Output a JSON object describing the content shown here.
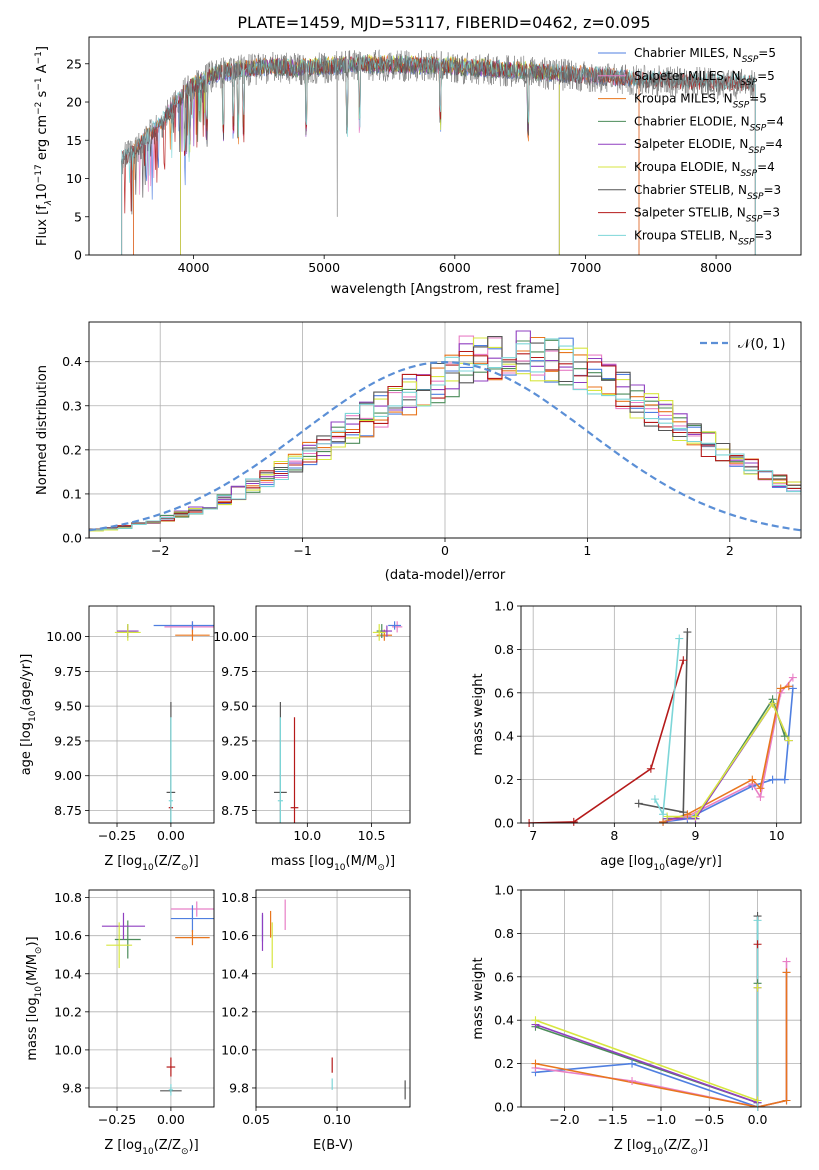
{
  "figure_title": "PLATE=1459, MJD=53117, FIBERID=0462, z=0.095",
  "colors": {
    "chabrier_miles": "#4f7fe0",
    "salpeter_miles": "#e87fc6",
    "kroupa_miles": "#e8761e",
    "chabrier_elodie": "#4c8c5a",
    "salpeter_elodie": "#8f3fc0",
    "kroupa_elodie": "#d7e640",
    "chabrier_stelib": "#555555",
    "salpeter_stelib": "#b51a1a",
    "kroupa_stelib": "#7dd6d8",
    "normal_curve": "#5b8fd6",
    "grid": "#b0b0b0"
  },
  "chart_data": [
    {
      "id": "spectrum",
      "type": "line",
      "title": "PLATE=1459, MJD=53117, FIBERID=0462, z=0.095",
      "xlabel": "wavelength [Angstrom, rest frame]",
      "ylabel_parts": [
        "Flux [f",
        "λ",
        "10",
        "−17",
        " erg cm",
        "−2",
        " s",
        "−1",
        " A",
        "−1",
        "]"
      ],
      "xlim": [
        3200,
        8650
      ],
      "ylim": [
        0,
        28.5
      ],
      "xticks": [
        4000,
        5000,
        6000,
        7000,
        8000
      ],
      "yticks": [
        0,
        5,
        10,
        15,
        20,
        25
      ],
      "grid": false,
      "legend_position": "upper-right",
      "legend": [
        {
          "name": "Chabrier MILES, N",
          "sub": "SSP",
          "suffix": "=5",
          "color": "#4f7fe0"
        },
        {
          "name": "Salpeter MILES, N",
          "sub": "SSP",
          "suffix": "=5",
          "color": "#e87fc6"
        },
        {
          "name": "Kroupa MILES, N",
          "sub": "SSP",
          "suffix": "=5",
          "color": "#e8761e"
        },
        {
          "name": "Chabrier ELODIE, N",
          "sub": "SSP",
          "suffix": "=4",
          "color": "#4c8c5a"
        },
        {
          "name": "Salpeter ELODIE, N",
          "sub": "SSP",
          "suffix": "=4",
          "color": "#8f3fc0"
        },
        {
          "name": "Kroupa ELODIE, N",
          "sub": "SSP",
          "suffix": "=4",
          "color": "#d7e640"
        },
        {
          "name": "Chabrier STELIB, N",
          "sub": "SSP",
          "suffix": "=3",
          "color": "#555555"
        },
        {
          "name": "Salpeter STELIB, N",
          "sub": "SSP",
          "suffix": "=3",
          "color": "#b51a1a"
        },
        {
          "name": "Kroupa STELIB, N",
          "sub": "SSP",
          "suffix": "=3",
          "color": "#7dd6d8"
        }
      ],
      "continuum": {
        "x": [
          3450,
          3550,
          3650,
          3750,
          3850,
          3950,
          4050,
          4150,
          4250,
          4400,
          4600,
          4800,
          5000,
          5300,
          5600,
          5900,
          6200,
          6500,
          6800,
          7100,
          7400,
          7700,
          8000,
          8300
        ],
        "y": [
          12.5,
          13.5,
          15.5,
          17,
          19.5,
          21.5,
          22.5,
          23.5,
          23.8,
          24.2,
          24.5,
          24.3,
          24.5,
          24.8,
          24.7,
          24.6,
          24.3,
          24.0,
          23.6,
          23.3,
          22.9,
          22.6,
          22.4,
          22.3
        ]
      },
      "series_ranges": [
        {
          "name": "Chabrier MILES",
          "x": [
            3540,
            7410
          ]
        },
        {
          "name": "Salpeter MILES",
          "x": [
            3540,
            7410
          ]
        },
        {
          "name": "Kroupa MILES",
          "x": [
            3540,
            7410
          ]
        },
        {
          "name": "Chabrier ELODIE",
          "x": [
            3900,
            6800
          ]
        },
        {
          "name": "Salpeter ELODIE",
          "x": [
            3900,
            6800
          ]
        },
        {
          "name": "Kroupa ELODIE",
          "x": [
            3900,
            6800
          ]
        },
        {
          "name": "Chabrier STELIB",
          "x": [
            3450,
            8300
          ]
        },
        {
          "name": "Salpeter STELIB",
          "x": [
            3450,
            8300
          ]
        },
        {
          "name": "Kroupa STELIB",
          "x": [
            3450,
            8300
          ]
        }
      ],
      "observed_range": [
        3450,
        8300
      ]
    },
    {
      "id": "residuals",
      "type": "histogram",
      "xlabel": "(data-model)/error",
      "ylabel": "Normed distribution",
      "xlim": [
        -2.5,
        2.5
      ],
      "ylim": [
        0,
        0.49
      ],
      "xticks": [
        -2,
        -1,
        0,
        1,
        2
      ],
      "yticks": [
        0.0,
        0.1,
        0.2,
        0.3,
        0.4
      ],
      "grid": true,
      "legend_position": "upper-right",
      "legend": [
        {
          "name": "𝒩(0, 1)",
          "color": "#5b8fd6",
          "style": "dashed"
        }
      ],
      "bins": {
        "start": -2.5,
        "width": 0.1,
        "count": 50
      },
      "base_density": [
        0.018,
        0.021,
        0.025,
        0.031,
        0.037,
        0.045,
        0.054,
        0.064,
        0.075,
        0.088,
        0.102,
        0.117,
        0.134,
        0.151,
        0.17,
        0.189,
        0.209,
        0.229,
        0.249,
        0.27,
        0.29,
        0.31,
        0.328,
        0.345,
        0.36,
        0.373,
        0.384,
        0.392,
        0.397,
        0.399,
        0.398,
        0.394,
        0.387,
        0.377,
        0.364,
        0.349,
        0.332,
        0.313,
        0.294,
        0.274,
        0.254,
        0.233,
        0.213,
        0.193,
        0.174,
        0.156,
        0.139,
        0.123,
        0.108,
        0.094
      ]
    },
    {
      "id": "age_vs_Z",
      "type": "scatter",
      "xlabel_parts": [
        "Z [log",
        "10",
        "(Z/Z",
        "⊙",
        ")]"
      ],
      "ylabel_parts": [
        "age  [log",
        "10",
        "(age/yr)]"
      ],
      "xlim": [
        -0.38,
        0.2
      ],
      "ylim": [
        8.66,
        10.22
      ],
      "xticks": [
        -0.25,
        0.0
      ],
      "yticks": [
        8.75,
        9.0,
        9.25,
        9.5,
        9.75,
        10.0
      ],
      "grid": true,
      "points": [
        {
          "x": 0.1,
          "y": 10.07,
          "xerr": 0.13,
          "yerr": 0.04,
          "color": "#e87fc6"
        },
        {
          "x": 0.1,
          "y": 10.08,
          "xerr": 0.18,
          "yerr": 0.03,
          "color": "#4f7fe0"
        },
        {
          "x": 0.1,
          "y": 10.01,
          "xerr": 0.08,
          "yerr": 0.04,
          "color": "#e8761e"
        },
        {
          "x": -0.2,
          "y": 10.04,
          "xerr": 0.04,
          "yerr": 0.05,
          "color": "#4c8c5a"
        },
        {
          "x": -0.2,
          "y": 10.04,
          "xerr": 0.05,
          "yerr": 0.04,
          "color": "#8f3fc0"
        },
        {
          "x": -0.2,
          "y": 10.03,
          "xerr": 0.06,
          "yerr": 0.06,
          "color": "#d7e640"
        },
        {
          "x": 0.0,
          "y": 8.88,
          "xerr": 0.02,
          "yerr": 0.65,
          "color": "#555555"
        },
        {
          "x": 0.0,
          "y": 8.77,
          "xerr": 0.01,
          "yerr": 0.02,
          "color": "#b51a1a"
        },
        {
          "x": 0.0,
          "y": 8.82,
          "xerr": 0.01,
          "yerr": 0.6,
          "color": "#7dd6d8"
        }
      ]
    },
    {
      "id": "age_vs_mass",
      "type": "scatter",
      "xlabel_parts": [
        "mass [log",
        "10",
        "(M/M",
        "⊙",
        ")]"
      ],
      "ylabel_parts": [],
      "xlim": [
        9.6,
        10.8
      ],
      "ylim": [
        8.66,
        10.22
      ],
      "xticks": [
        10.0,
        10.5
      ],
      "yticks": [
        8.75,
        9.0,
        9.25,
        9.5,
        9.75,
        10.0
      ],
      "grid": true,
      "points": [
        {
          "x": 10.7,
          "y": 10.07,
          "xerr": 0.04,
          "yerr": 0.04,
          "color": "#e87fc6"
        },
        {
          "x": 10.68,
          "y": 10.08,
          "xerr": 0.05,
          "yerr": 0.03,
          "color": "#4f7fe0"
        },
        {
          "x": 10.6,
          "y": 10.01,
          "xerr": 0.06,
          "yerr": 0.04,
          "color": "#e8761e"
        },
        {
          "x": 10.58,
          "y": 10.04,
          "xerr": 0.04,
          "yerr": 0.05,
          "color": "#4c8c5a"
        },
        {
          "x": 10.62,
          "y": 10.04,
          "xerr": 0.04,
          "yerr": 0.04,
          "color": "#8f3fc0"
        },
        {
          "x": 10.56,
          "y": 10.03,
          "xerr": 0.05,
          "yerr": 0.06,
          "color": "#d7e640"
        },
        {
          "x": 9.79,
          "y": 8.88,
          "xerr": 0.05,
          "yerr": 0.65,
          "color": "#555555"
        },
        {
          "x": 9.9,
          "y": 8.77,
          "xerr": 0.03,
          "yerr": 0.65,
          "color": "#b51a1a"
        },
        {
          "x": 9.79,
          "y": 8.82,
          "xerr": 0.02,
          "yerr": 0.6,
          "color": "#7dd6d8"
        }
      ]
    },
    {
      "id": "weight_vs_age",
      "type": "line",
      "xlabel_parts": [
        "age  [log",
        "10",
        "(age/yr)]"
      ],
      "ylabel": "mass weight",
      "xlim": [
        6.85,
        10.3
      ],
      "ylim": [
        0,
        1.0
      ],
      "xticks": [
        7,
        8,
        9,
        10
      ],
      "yticks": [
        0.0,
        0.2,
        0.4,
        0.6,
        0.8,
        1.0
      ],
      "grid": true,
      "series": [
        {
          "name": "Chabrier MILES",
          "color": "#4f7fe0",
          "x": [
            8.6,
            8.9,
            9.7,
            9.95,
            10.1,
            10.2
          ],
          "y": [
            0.005,
            0.02,
            0.17,
            0.2,
            0.2,
            0.62
          ]
        },
        {
          "name": "Salpeter MILES",
          "color": "#e87fc6",
          "x": [
            8.6,
            8.9,
            9.7,
            9.8,
            10.05,
            10.2
          ],
          "y": [
            0.005,
            0.03,
            0.18,
            0.12,
            0.6,
            0.67
          ]
        },
        {
          "name": "Kroupa MILES",
          "color": "#e8761e",
          "x": [
            8.6,
            8.9,
            9.7,
            9.8,
            10.05,
            10.15
          ],
          "y": [
            0.005,
            0.04,
            0.2,
            0.16,
            0.62,
            0.63
          ]
        },
        {
          "name": "Chabrier ELODIE",
          "color": "#4c8c5a",
          "x": [
            8.65,
            9.0,
            9.95,
            10.1
          ],
          "y": [
            0.02,
            0.02,
            0.57,
            0.4
          ]
        },
        {
          "name": "Salpeter ELODIE",
          "color": "#8f3fc0",
          "x": [
            8.65,
            9.0,
            9.95,
            10.15
          ],
          "y": [
            0.02,
            0.02,
            0.55,
            0.38
          ]
        },
        {
          "name": "Kroupa ELODIE",
          "color": "#d7e640",
          "x": [
            8.65,
            9.0,
            9.95,
            10.15
          ],
          "y": [
            0.03,
            0.03,
            0.55,
            0.38
          ]
        },
        {
          "name": "Chabrier STELIB",
          "color": "#555555",
          "x": [
            8.3,
            8.85,
            8.9
          ],
          "y": [
            0.09,
            0.05,
            0.88
          ]
        },
        {
          "name": "Salpeter STELIB",
          "color": "#b51a1a",
          "x": [
            6.95,
            7.5,
            8.45,
            8.85
          ],
          "y": [
            0.0,
            0.005,
            0.25,
            0.75
          ]
        },
        {
          "name": "Kroupa STELIB",
          "color": "#7dd6d8",
          "x": [
            8.5,
            8.6,
            8.8
          ],
          "y": [
            0.11,
            0.04,
            0.85
          ]
        }
      ]
    },
    {
      "id": "mass_vs_Z",
      "type": "scatter",
      "xlabel_parts": [
        "Z [log",
        "10",
        "(Z/Z",
        "⊙",
        ")]"
      ],
      "ylabel_parts": [
        "mass [log",
        "10",
        "(M/M",
        "⊙",
        ")]"
      ],
      "xlim": [
        -0.38,
        0.2
      ],
      "ylim": [
        9.7,
        10.84
      ],
      "xticks": [
        -0.25,
        0.0
      ],
      "yticks": [
        9.8,
        10.0,
        10.2,
        10.4,
        10.6,
        10.8
      ],
      "grid": true,
      "points": [
        {
          "x": 0.12,
          "y": 10.74,
          "xerr": 0.12,
          "yerr": 0.04,
          "color": "#e87fc6"
        },
        {
          "x": 0.1,
          "y": 10.69,
          "xerr": 0.1,
          "yerr": 0.07,
          "color": "#4f7fe0"
        },
        {
          "x": 0.1,
          "y": 10.59,
          "xerr": 0.08,
          "yerr": 0.04,
          "color": "#e8761e"
        },
        {
          "x": -0.2,
          "y": 10.58,
          "xerr": 0.06,
          "yerr": 0.1,
          "color": "#4c8c5a"
        },
        {
          "x": -0.22,
          "y": 10.65,
          "xerr": 0.1,
          "yerr": 0.07,
          "color": "#8f3fc0"
        },
        {
          "x": -0.24,
          "y": 10.55,
          "xerr": 0.06,
          "yerr": 0.12,
          "color": "#d7e640"
        },
        {
          "x": 0.0,
          "y": 9.785,
          "xerr": 0.05,
          "yerr": 0.01,
          "color": "#555555"
        },
        {
          "x": 0.0,
          "y": 9.91,
          "xerr": 0.02,
          "yerr": 0.05,
          "color": "#b51a1a"
        },
        {
          "x": 0.0,
          "y": 9.79,
          "xerr": 0.01,
          "yerr": 0.03,
          "color": "#7dd6d8"
        }
      ]
    },
    {
      "id": "mass_vs_EBV",
      "type": "scatter",
      "xlabel": "E(B-V)",
      "ylabel_parts": [],
      "xlim": [
        0.05,
        0.145
      ],
      "ylim": [
        9.7,
        10.84
      ],
      "xticks": [
        0.05,
        0.1
      ],
      "yticks": [
        9.8,
        10.0,
        10.2,
        10.4,
        10.6,
        10.8
      ],
      "grid": true,
      "points": [
        {
          "x": 0.068,
          "y": 10.71,
          "xerr": 0.0,
          "yerr": 0.08,
          "color": "#e87fc6"
        },
        {
          "x": 0.054,
          "y": 10.64,
          "xerr": 0.0,
          "yerr": 0.07,
          "color": "#4f7fe0"
        },
        {
          "x": 0.059,
          "y": 10.66,
          "xerr": 0.0,
          "yerr": 0.07,
          "color": "#e8761e"
        },
        {
          "x": 0.054,
          "y": 10.62,
          "xerr": 0.0,
          "yerr": 0.1,
          "color": "#8f3fc0"
        },
        {
          "x": 0.06,
          "y": 10.55,
          "xerr": 0.0,
          "yerr": 0.12,
          "color": "#d7e640"
        },
        {
          "x": 0.142,
          "y": 9.79,
          "xerr": 0.0,
          "yerr": 0.05,
          "color": "#555555"
        },
        {
          "x": 0.097,
          "y": 9.92,
          "xerr": 0.0,
          "yerr": 0.04,
          "color": "#b51a1a"
        },
        {
          "x": 0.097,
          "y": 9.82,
          "xerr": 0.0,
          "yerr": 0.03,
          "color": "#7dd6d8"
        }
      ]
    },
    {
      "id": "weight_vs_Z",
      "type": "line",
      "xlabel_parts": [
        "Z [log",
        "10",
        "(Z/Z",
        "⊙",
        ")]"
      ],
      "ylabel": "mass weight",
      "xlim": [
        -2.45,
        0.45
      ],
      "ylim": [
        0,
        1.0
      ],
      "xticks": [
        -2.0,
        -1.5,
        -1.0,
        -0.5,
        0.0
      ],
      "yticks": [
        0.0,
        0.2,
        0.4,
        0.6,
        0.8,
        1.0
      ],
      "grid": true,
      "series": [
        {
          "name": "Chabrier MILES",
          "color": "#4f7fe0",
          "x": [
            -2.3,
            -1.3,
            0.0,
            0.3,
            0.3
          ],
          "y": [
            0.16,
            0.2,
            0.0,
            0.03,
            0.62
          ]
        },
        {
          "name": "Salpeter MILES",
          "color": "#e87fc6",
          "x": [
            -2.3,
            -1.3,
            0.0,
            0.3,
            0.3
          ],
          "y": [
            0.18,
            0.12,
            0.0,
            0.03,
            0.67
          ]
        },
        {
          "name": "Kroupa MILES",
          "color": "#e8761e",
          "x": [
            -2.3,
            0.0,
            0.3,
            0.3
          ],
          "y": [
            0.2,
            0.0,
            0.03,
            0.62
          ]
        },
        {
          "name": "Chabrier ELODIE",
          "color": "#4c8c5a",
          "x": [
            -2.3,
            0.0,
            0.0
          ],
          "y": [
            0.37,
            0.02,
            0.57
          ]
        },
        {
          "name": "Salpeter ELODIE",
          "color": "#8f3fc0",
          "x": [
            -2.3,
            0.0,
            0.0
          ],
          "y": [
            0.38,
            0.02,
            0.55
          ]
        },
        {
          "name": "Kroupa ELODIE",
          "color": "#d7e640",
          "x": [
            -2.3,
            0.0,
            0.0
          ],
          "y": [
            0.4,
            0.03,
            0.55
          ]
        },
        {
          "name": "Chabrier STELIB",
          "color": "#555555",
          "x": [
            0.0,
            0.0
          ],
          "y": [
            0.0,
            0.88
          ]
        },
        {
          "name": "Salpeter STELIB",
          "color": "#b51a1a",
          "x": [
            0.0,
            0.0
          ],
          "y": [
            0.0,
            0.75
          ]
        },
        {
          "name": "Kroupa STELIB",
          "color": "#7dd6d8",
          "x": [
            0.0,
            0.0
          ],
          "y": [
            0.0,
            0.86
          ]
        }
      ]
    }
  ]
}
